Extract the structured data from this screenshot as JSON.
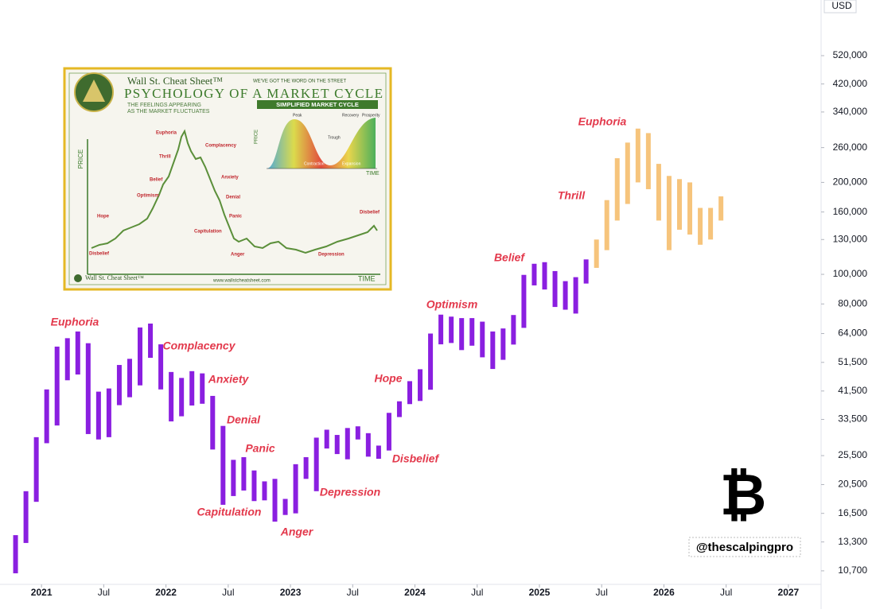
{
  "chart_data": {
    "type": "candlestick",
    "currency": "USD",
    "log_scale": true,
    "grid": false,
    "xlim": [
      "2020-09",
      "2027-04"
    ],
    "ylim": [
      9660,
      791000
    ],
    "yticks": [
      {
        "value": 10700,
        "label": "10,700"
      },
      {
        "value": 13300,
        "label": "13,300"
      },
      {
        "value": 16500,
        "label": "16,500"
      },
      {
        "value": 20500,
        "label": "20,500"
      },
      {
        "value": 25500,
        "label": "25,500"
      },
      {
        "value": 33500,
        "label": "33,500"
      },
      {
        "value": 41500,
        "label": "41,500"
      },
      {
        "value": 51500,
        "label": "51,500"
      },
      {
        "value": 64000,
        "label": "64,000"
      },
      {
        "value": 80000,
        "label": "80,000"
      },
      {
        "value": 100000,
        "label": "100,000"
      },
      {
        "value": 130000,
        "label": "130,000"
      },
      {
        "value": 160000,
        "label": "160,000"
      },
      {
        "value": 200000,
        "label": "200,000"
      },
      {
        "value": 260000,
        "label": "260,000"
      },
      {
        "value": 340000,
        "label": "340,000"
      },
      {
        "value": 420000,
        "label": "420,000"
      },
      {
        "value": 520000,
        "label": "520,000"
      }
    ],
    "xticks": [
      {
        "value": "2021-01",
        "label": "2021"
      },
      {
        "value": "2021-07",
        "label": "Jul"
      },
      {
        "value": "2022-01",
        "label": "2022"
      },
      {
        "value": "2022-07",
        "label": "Jul"
      },
      {
        "value": "2023-01",
        "label": "2023"
      },
      {
        "value": "2023-07",
        "label": "Jul"
      },
      {
        "value": "2024-01",
        "label": "2024"
      },
      {
        "value": "2024-07",
        "label": "Jul"
      },
      {
        "value": "2025-01",
        "label": "2025"
      },
      {
        "value": "2025-07",
        "label": "Jul"
      },
      {
        "value": "2026-01",
        "label": "2026"
      },
      {
        "value": "2026-07",
        "label": "Jul"
      },
      {
        "value": "2027-01",
        "label": "2027"
      }
    ],
    "series": [
      {
        "color": "#8a1fe0",
        "x": [
          "2020-10",
          "2020-11",
          "2020-12",
          "2021-01",
          "2021-02",
          "2021-03",
          "2021-04",
          "2021-05",
          "2021-06",
          "2021-07",
          "2021-08",
          "2021-09",
          "2021-10",
          "2021-11",
          "2021-12",
          "2022-01",
          "2022-02",
          "2022-03",
          "2022-04",
          "2022-05",
          "2022-06",
          "2022-07",
          "2022-08",
          "2022-09",
          "2022-10",
          "2022-11",
          "2022-12",
          "2023-01",
          "2023-02",
          "2023-03",
          "2023-04",
          "2023-05",
          "2023-06",
          "2023-07",
          "2023-08",
          "2023-09",
          "2023-10",
          "2023-11",
          "2023-12",
          "2024-01",
          "2024-02",
          "2024-03",
          "2024-04",
          "2024-05",
          "2024-06",
          "2024-07",
          "2024-08",
          "2024-09",
          "2024-10",
          "2024-11",
          "2024-12",
          "2025-01",
          "2025-02",
          "2025-03",
          "2025-04",
          "2025-05"
        ],
        "low": [
          10500,
          13200,
          18000,
          28000,
          32000,
          45000,
          47000,
          30000,
          28800,
          29300,
          37300,
          39600,
          43300,
          53300,
          42000,
          33000,
          34300,
          37200,
          37700,
          26700,
          17600,
          18800,
          19600,
          18100,
          18200,
          15500,
          16300,
          16500,
          21400,
          19500,
          26900,
          25800,
          24800,
          28800,
          25300,
          24900,
          26500,
          34100,
          37600,
          38500,
          41900,
          59000,
          59600,
          56500,
          58400,
          53500,
          49000,
          52500,
          58900,
          66800,
          92000,
          89200,
          78200,
          76600,
          74400,
          93300
        ],
        "high": [
          14000,
          19500,
          29300,
          42000,
          58000,
          61800,
          65000,
          59500,
          41300,
          42300,
          50500,
          52900,
          67000,
          69000,
          59000,
          47900,
          45800,
          48200,
          47400,
          40000,
          31900,
          24700,
          25200,
          22800,
          21000,
          21400,
          18400,
          23900,
          25200,
          29200,
          31000,
          29800,
          31400,
          31800,
          30200,
          27500,
          35200,
          38400,
          44700,
          48900,
          64000,
          73800,
          72700,
          71900,
          71900,
          70000,
          65000,
          66500,
          73600,
          99600,
          108300,
          109600,
          102500,
          95000,
          97900,
          111900
        ]
      },
      {
        "color": "#f6c47c",
        "x": [
          "2025-06",
          "2025-07",
          "2025-08",
          "2025-09",
          "2025-10",
          "2025-11",
          "2025-12",
          "2026-01",
          "2026-02",
          "2026-03",
          "2026-04",
          "2026-05",
          "2026-06"
        ],
        "low": [
          105000,
          120000,
          150000,
          170000,
          200000,
          190000,
          150000,
          120000,
          140000,
          135000,
          125000,
          130000,
          150000
        ],
        "high": [
          130000,
          175000,
          240000,
          270000,
          300000,
          290000,
          230000,
          210000,
          205000,
          200000,
          165000,
          165000,
          180000
        ]
      }
    ],
    "annotations": [
      "Euphoria",
      "Complacency",
      "Anxiety",
      "Denial",
      "Panic",
      "Capitulation",
      "Anger",
      "Depression",
      "Disbelief",
      "Hope",
      "Optimism",
      "Belief",
      "Thrill",
      "Euphoria"
    ],
    "symbol": "₿",
    "watermark": "@thescalpingpro"
  },
  "inset": {
    "brand": "Wall St. Cheat Sheet™",
    "tagline": "WE'VE GOT THE WORD ON THE STREET",
    "title": "PSYCHOLOGY OF A MARKET CYCLE",
    "subtitle_1": "THE FEELINGS APPEARING",
    "subtitle_2": "AS THE MARKET FLUCTUATES",
    "mini_title": "SIMPLIFIED MARKET CYCLE",
    "mini_labels": [
      "Peak",
      "Trough",
      "Recovery",
      "Prosperity",
      "Contraction",
      "Expansion",
      "PRICE",
      "TIME"
    ],
    "axis_price": "PRICE",
    "axis_time": "TIME",
    "stages": [
      "Euphoria",
      "Thrill",
      "Belief",
      "Optimism",
      "Hope",
      "Disbelief",
      "Complacency",
      "Anxiety",
      "Denial",
      "Panic",
      "Capitulation",
      "Anger",
      "Depression",
      "Disbelief"
    ],
    "footer_brand": "Wall St. Cheat Sheet™",
    "footer_url": "www.wallstcheatsheet.com"
  }
}
